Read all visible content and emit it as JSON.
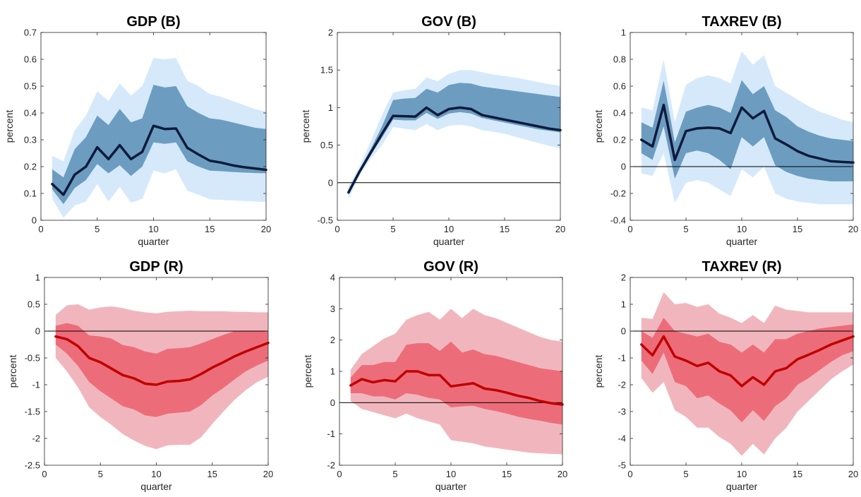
{
  "colors": {
    "blue_outer": "#d5e9fb",
    "blue_inner": "#6c9dc0",
    "blue_line": "#0e1a3c",
    "red_outer": "#f1b6bd",
    "red_inner": "#ec6d79",
    "red_line": "#c00000"
  },
  "chart_data": [
    {
      "type": "line",
      "title": "GDP (B)",
      "xlabel": "quarter",
      "ylabel": "percent",
      "xlim": [
        0,
        20
      ],
      "ylim": [
        0,
        0.7
      ],
      "xticks": [
        "0",
        "5",
        "10",
        "15",
        "20"
      ],
      "yticks": [
        "0",
        "0.1",
        "0.2",
        "0.3",
        "0.4",
        "0.5",
        "0.6",
        "0.7"
      ],
      "theme": "blue",
      "zero_line": false,
      "x": [
        1,
        2,
        3,
        4,
        5,
        6,
        7,
        8,
        9,
        10,
        11,
        12,
        13,
        14,
        15,
        16,
        17,
        18,
        19,
        20
      ],
      "median": [
        0.135,
        0.095,
        0.17,
        0.2,
        0.272,
        0.228,
        0.28,
        0.228,
        0.255,
        0.352,
        0.34,
        0.342,
        0.27,
        0.245,
        0.222,
        0.215,
        0.205,
        0.198,
        0.193,
        0.188
      ],
      "inner_lower": [
        0.115,
        0.06,
        0.12,
        0.15,
        0.21,
        0.175,
        0.205,
        0.165,
        0.2,
        0.29,
        0.285,
        0.29,
        0.22,
        0.2,
        0.185,
        0.183,
        0.18,
        0.178,
        0.176,
        0.175
      ],
      "inner_upper": [
        0.19,
        0.16,
        0.265,
        0.31,
        0.39,
        0.355,
        0.415,
        0.365,
        0.38,
        0.505,
        0.495,
        0.5,
        0.425,
        0.4,
        0.38,
        0.375,
        0.365,
        0.355,
        0.345,
        0.34
      ],
      "outer_lower": [
        0.08,
        0.01,
        0.055,
        0.07,
        0.135,
        0.07,
        0.125,
        0.065,
        0.08,
        0.185,
        0.175,
        0.19,
        0.11,
        0.095,
        0.078,
        0.076,
        0.074,
        0.072,
        0.07,
        0.068
      ],
      "outer_upper": [
        0.24,
        0.22,
        0.335,
        0.39,
        0.48,
        0.445,
        0.51,
        0.465,
        0.5,
        0.605,
        0.6,
        0.605,
        0.52,
        0.5,
        0.47,
        0.46,
        0.445,
        0.43,
        0.415,
        0.405
      ]
    },
    {
      "type": "line",
      "title": "GOV (B)",
      "xlabel": "quarter",
      "ylabel": "percent",
      "xlim": [
        0,
        20
      ],
      "ylim": [
        -0.5,
        2
      ],
      "xticks": [
        "0",
        "5",
        "10",
        "15",
        "20"
      ],
      "yticks": [
        "-0.5",
        "0",
        "0.5",
        "1",
        "1.5",
        "2"
      ],
      "theme": "blue",
      "zero_line": true,
      "x": [
        1,
        2,
        3,
        4,
        5,
        6,
        7,
        8,
        9,
        10,
        11,
        12,
        13,
        14,
        15,
        16,
        17,
        18,
        19,
        20
      ],
      "median": [
        -0.13,
        0.15,
        0.4,
        0.65,
        0.89,
        0.885,
        0.88,
        1.0,
        0.9,
        0.98,
        1.0,
        0.98,
        0.9,
        0.87,
        0.84,
        0.81,
        0.78,
        0.75,
        0.72,
        0.7
      ],
      "inner_lower": [
        -0.15,
        0.12,
        0.37,
        0.6,
        0.84,
        0.83,
        0.83,
        0.93,
        0.85,
        0.92,
        0.94,
        0.92,
        0.86,
        0.83,
        0.8,
        0.77,
        0.74,
        0.71,
        0.69,
        0.67
      ],
      "inner_upper": [
        -0.1,
        0.18,
        0.45,
        0.75,
        1.1,
        1.12,
        1.13,
        1.25,
        1.2,
        1.3,
        1.33,
        1.32,
        1.28,
        1.26,
        1.24,
        1.22,
        1.2,
        1.18,
        1.16,
        1.14
      ],
      "outer_lower": [
        -0.22,
        0.1,
        0.32,
        0.5,
        0.74,
        0.72,
        0.7,
        0.78,
        0.7,
        0.76,
        0.77,
        0.75,
        0.7,
        0.68,
        0.65,
        0.61,
        0.57,
        0.53,
        0.49,
        0.46
      ],
      "outer_upper": [
        -0.05,
        0.22,
        0.55,
        0.9,
        1.2,
        1.23,
        1.25,
        1.4,
        1.35,
        1.45,
        1.5,
        1.5,
        1.47,
        1.44,
        1.42,
        1.4,
        1.37,
        1.34,
        1.31,
        1.29
      ]
    },
    {
      "type": "line",
      "title": "TAXREV (B)",
      "xlabel": "quarter",
      "ylabel": "percent",
      "xlim": [
        0,
        20
      ],
      "ylim": [
        -0.4,
        1
      ],
      "xticks": [
        "0",
        "5",
        "10",
        "15",
        "20"
      ],
      "yticks": [
        "-0.4",
        "-0.2",
        "0",
        "0.2",
        "0.4",
        "0.6",
        "0.8",
        "1"
      ],
      "theme": "blue",
      "zero_line": true,
      "x": [
        1,
        2,
        3,
        4,
        5,
        6,
        7,
        8,
        9,
        10,
        11,
        12,
        13,
        14,
        15,
        16,
        17,
        18,
        19,
        20
      ],
      "median": [
        0.2,
        0.15,
        0.46,
        0.05,
        0.265,
        0.285,
        0.29,
        0.285,
        0.25,
        0.44,
        0.36,
        0.415,
        0.21,
        0.165,
        0.115,
        0.08,
        0.06,
        0.04,
        0.035,
        0.03
      ],
      "inner_lower": [
        0.1,
        0.05,
        0.3,
        -0.09,
        0.1,
        0.12,
        0.1,
        0.05,
        -0.02,
        0.22,
        0.15,
        0.22,
        0.01,
        -0.04,
        -0.07,
        -0.09,
        -0.1,
        -0.11,
        -0.11,
        -0.11
      ],
      "inner_upper": [
        0.33,
        0.29,
        0.64,
        0.18,
        0.41,
        0.44,
        0.46,
        0.44,
        0.4,
        0.645,
        0.54,
        0.6,
        0.42,
        0.37,
        0.3,
        0.26,
        0.23,
        0.21,
        0.2,
        0.19
      ],
      "outer_lower": [
        -0.05,
        -0.07,
        0.1,
        -0.27,
        -0.12,
        -0.1,
        -0.12,
        -0.17,
        -0.22,
        -0.02,
        -0.08,
        0.0,
        -0.2,
        -0.24,
        -0.26,
        -0.27,
        -0.28,
        -0.28,
        -0.28,
        -0.28
      ],
      "outer_upper": [
        0.44,
        0.42,
        0.8,
        0.33,
        0.61,
        0.66,
        0.68,
        0.66,
        0.62,
        0.86,
        0.76,
        0.83,
        0.6,
        0.55,
        0.5,
        0.45,
        0.41,
        0.38,
        0.35,
        0.33
      ]
    },
    {
      "type": "line",
      "title": "GDP (R)",
      "xlabel": "quarter",
      "ylabel": "percent",
      "xlim": [
        0,
        20
      ],
      "ylim": [
        -2.5,
        1
      ],
      "xticks": [
        "0",
        "5",
        "10",
        "15",
        "20"
      ],
      "yticks": [
        "-2.5",
        "-2",
        "-1.5",
        "-1",
        "-0.5",
        "0",
        "0.5",
        "1"
      ],
      "theme": "red",
      "zero_line": true,
      "x": [
        1,
        2,
        3,
        4,
        5,
        6,
        7,
        8,
        9,
        10,
        11,
        12,
        13,
        14,
        15,
        16,
        17,
        18,
        19,
        20
      ],
      "median": [
        -0.1,
        -0.15,
        -0.28,
        -0.5,
        -0.58,
        -0.7,
        -0.82,
        -0.88,
        -0.98,
        -1.0,
        -0.94,
        -0.93,
        -0.9,
        -0.8,
        -0.68,
        -0.58,
        -0.47,
        -0.38,
        -0.3,
        -0.22
      ],
      "inner_lower": [
        -0.25,
        -0.42,
        -0.65,
        -0.95,
        -1.12,
        -1.26,
        -1.4,
        -1.46,
        -1.57,
        -1.6,
        -1.54,
        -1.52,
        -1.5,
        -1.38,
        -1.2,
        -1.06,
        -0.9,
        -0.75,
        -0.64,
        -0.55
      ],
      "inner_upper": [
        0.1,
        0.15,
        0.1,
        -0.08,
        -0.1,
        -0.14,
        -0.26,
        -0.3,
        -0.38,
        -0.42,
        -0.33,
        -0.32,
        -0.3,
        -0.23,
        -0.15,
        -0.07,
        0.0,
        0.0,
        0.0,
        0.0
      ],
      "outer_lower": [
        -0.5,
        -0.75,
        -1.05,
        -1.42,
        -1.6,
        -1.75,
        -1.92,
        -2.04,
        -2.14,
        -2.2,
        -2.13,
        -2.12,
        -2.12,
        -1.98,
        -1.73,
        -1.5,
        -1.28,
        -1.1,
        -0.95,
        -0.85
      ],
      "outer_upper": [
        0.3,
        0.48,
        0.5,
        0.4,
        0.44,
        0.46,
        0.43,
        0.38,
        0.35,
        0.33,
        0.36,
        0.37,
        0.38,
        0.37,
        0.37,
        0.37,
        0.36,
        0.36,
        0.35,
        0.35
      ]
    },
    {
      "type": "line",
      "title": "GOV (R)",
      "xlabel": "quarter",
      "ylabel": "percent",
      "xlim": [
        0,
        20
      ],
      "ylim": [
        -2,
        4
      ],
      "xticks": [
        "0",
        "5",
        "10",
        "15",
        "20"
      ],
      "yticks": [
        "-2",
        "-1",
        "0",
        "1",
        "2",
        "3",
        "4"
      ],
      "theme": "red",
      "zero_line": true,
      "x": [
        1,
        2,
        3,
        4,
        5,
        6,
        7,
        8,
        9,
        10,
        11,
        12,
        13,
        14,
        15,
        16,
        17,
        18,
        19,
        20
      ],
      "median": [
        0.55,
        0.75,
        0.65,
        0.72,
        0.68,
        1.0,
        1.0,
        0.88,
        0.88,
        0.52,
        0.57,
        0.62,
        0.45,
        0.4,
        0.32,
        0.22,
        0.15,
        0.05,
        -0.02,
        -0.06
      ],
      "inner_lower": [
        0.3,
        0.3,
        0.2,
        0.2,
        0.1,
        0.3,
        0.25,
        0.15,
        0.1,
        -0.15,
        -0.12,
        -0.1,
        -0.2,
        -0.27,
        -0.35,
        -0.45,
        -0.52,
        -0.58,
        -0.65,
        -0.7
      ],
      "inner_upper": [
        0.8,
        1.2,
        1.2,
        1.3,
        1.3,
        1.85,
        1.9,
        1.9,
        1.65,
        1.95,
        1.6,
        1.7,
        1.55,
        1.5,
        1.4,
        1.3,
        1.2,
        1.1,
        1.05,
        1.0
      ],
      "outer_lower": [
        0.05,
        -0.2,
        -0.3,
        -0.4,
        -0.5,
        -0.35,
        -0.5,
        -0.6,
        -0.7,
        -1.2,
        -1.25,
        -1.3,
        -1.4,
        -1.45,
        -1.5,
        -1.55,
        -1.6,
        -1.62,
        -1.64,
        -1.65
      ],
      "outer_upper": [
        1.05,
        1.55,
        1.8,
        2.05,
        2.2,
        2.65,
        2.8,
        2.9,
        2.65,
        3.0,
        2.7,
        3.0,
        2.8,
        2.7,
        2.55,
        2.4,
        2.25,
        2.1,
        2.0,
        1.95
      ]
    },
    {
      "type": "line",
      "title": "TAXREV (R)",
      "xlabel": "quarter",
      "ylabel": "percent",
      "xlim": [
        0,
        20
      ],
      "ylim": [
        -5,
        2
      ],
      "xticks": [
        "0",
        "5",
        "10",
        "15",
        "20"
      ],
      "yticks": [
        "-5",
        "-4",
        "-3",
        "-2",
        "-1",
        "0",
        "1",
        "2"
      ],
      "theme": "red",
      "zero_line": true,
      "x": [
        1,
        2,
        3,
        4,
        5,
        6,
        7,
        8,
        9,
        10,
        11,
        12,
        13,
        14,
        15,
        16,
        17,
        18,
        19,
        20
      ],
      "median": [
        -0.5,
        -0.9,
        -0.2,
        -0.95,
        -1.1,
        -1.3,
        -1.18,
        -1.5,
        -1.65,
        -2.05,
        -1.72,
        -2.0,
        -1.5,
        -1.38,
        -1.05,
        -0.88,
        -0.7,
        -0.5,
        -0.35,
        -0.2
      ],
      "inner_lower": [
        -1.1,
        -1.6,
        -0.8,
        -1.9,
        -2.05,
        -2.5,
        -2.4,
        -2.7,
        -2.95,
        -3.4,
        -2.95,
        -3.35,
        -2.8,
        -2.5,
        -2.0,
        -1.75,
        -1.45,
        -1.15,
        -0.9,
        -0.75
      ],
      "inner_upper": [
        0.0,
        -0.25,
        0.5,
        0.0,
        -0.1,
        -0.2,
        -0.1,
        -0.4,
        -0.5,
        -0.8,
        -0.5,
        -0.8,
        -0.3,
        -0.3,
        -0.1,
        0.0,
        0.1,
        0.15,
        0.2,
        0.25
      ],
      "outer_lower": [
        -1.75,
        -2.3,
        -1.9,
        -2.95,
        -3.2,
        -3.6,
        -3.6,
        -3.95,
        -4.2,
        -4.65,
        -4.2,
        -4.6,
        -4.0,
        -3.6,
        -3.0,
        -2.6,
        -2.2,
        -1.8,
        -1.5,
        -1.25
      ],
      "outer_upper": [
        0.5,
        0.45,
        1.45,
        1.0,
        1.05,
        0.9,
        1.0,
        0.65,
        0.5,
        0.3,
        0.6,
        0.3,
        0.95,
        0.8,
        0.75,
        0.7,
        0.7,
        0.7,
        0.7,
        0.7
      ]
    }
  ]
}
